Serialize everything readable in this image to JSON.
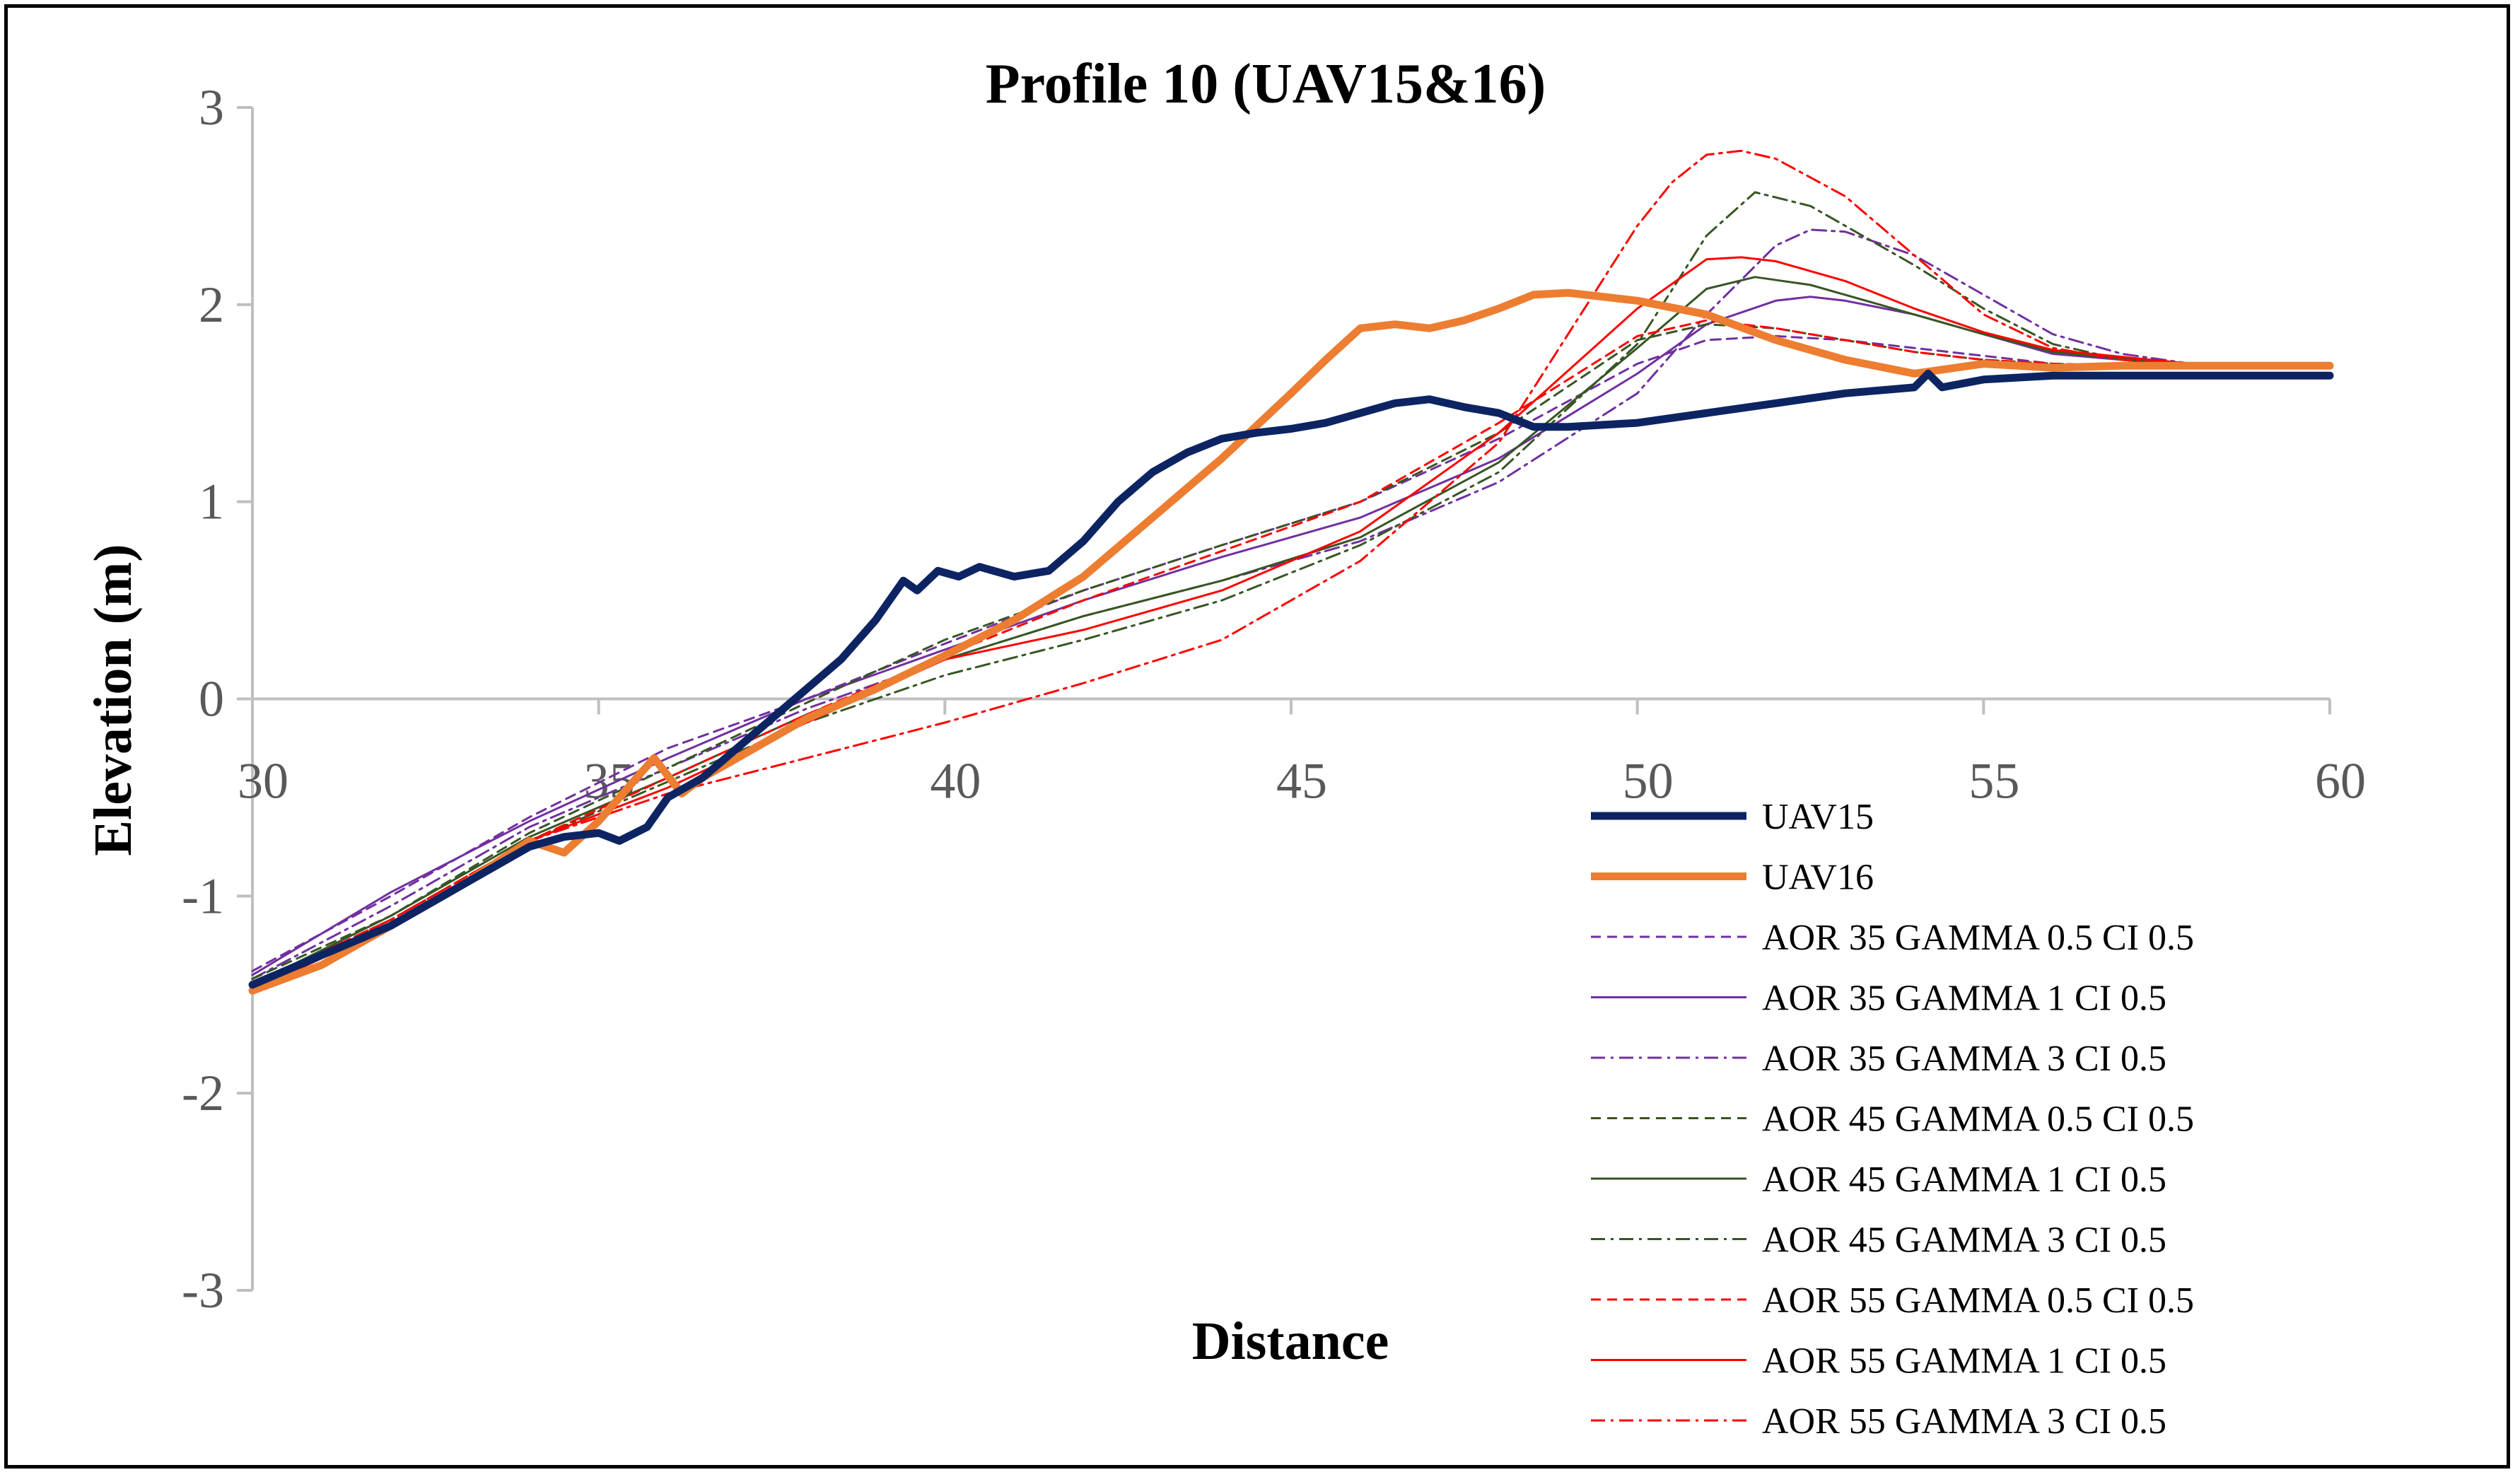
{
  "chart_data": {
    "type": "line",
    "title": "Profile 10 (UAV15&16)",
    "xlabel": "Distance",
    "ylabel": "Elevation (m)",
    "xlim": [
      30,
      60
    ],
    "ylim": [
      -3,
      3
    ],
    "xticks": [
      30,
      35,
      40,
      45,
      50,
      55,
      60
    ],
    "yticks": [
      3,
      2,
      1,
      0,
      -1,
      -2,
      -3
    ],
    "grid": false,
    "legend": "bottom-right",
    "series": [
      {
        "name": "UAV15",
        "color": "#0d2463",
        "width": 11,
        "dash": "",
        "x": [
          30,
          31,
          32,
          33,
          34,
          34.5,
          35,
          35.3,
          35.7,
          36,
          36.5,
          37,
          37.5,
          38,
          38.5,
          39,
          39.4,
          39.6,
          39.9,
          40.2,
          40.5,
          41,
          41.5,
          42,
          42.5,
          43,
          43.5,
          44,
          44.5,
          45,
          45.5,
          46,
          46.5,
          47,
          47.5,
          48,
          48.5,
          49,
          50,
          51,
          52,
          53,
          54,
          54.2,
          54.4,
          55,
          56,
          57,
          58,
          59,
          60
        ],
        "y": [
          -1.45,
          -1.3,
          -1.15,
          -0.95,
          -0.75,
          -0.7,
          -0.68,
          -0.72,
          -0.65,
          -0.5,
          -0.4,
          -0.25,
          -0.1,
          0.05,
          0.2,
          0.4,
          0.6,
          0.55,
          0.65,
          0.62,
          0.67,
          0.62,
          0.65,
          0.8,
          1.0,
          1.15,
          1.25,
          1.32,
          1.35,
          1.37,
          1.4,
          1.45,
          1.5,
          1.52,
          1.48,
          1.45,
          1.38,
          1.38,
          1.4,
          1.45,
          1.5,
          1.55,
          1.58,
          1.65,
          1.58,
          1.62,
          1.64,
          1.64,
          1.64,
          1.64,
          1.64
        ]
      },
      {
        "name": "UAV16",
        "color": "#ed7d31",
        "width": 11,
        "dash": "",
        "x": [
          30,
          31,
          31.5,
          32,
          33,
          34,
          34.5,
          35,
          35.5,
          35.8,
          36.2,
          36.5,
          37,
          38,
          39,
          40,
          41,
          42,
          43,
          44,
          45,
          45.5,
          46,
          46.5,
          47,
          47.5,
          48,
          48.5,
          49,
          50,
          51,
          52,
          53,
          54,
          55,
          56,
          57,
          58,
          59,
          60
        ],
        "y": [
          -1.48,
          -1.35,
          -1.25,
          -1.15,
          -0.95,
          -0.72,
          -0.78,
          -0.62,
          -0.42,
          -0.3,
          -0.48,
          -0.4,
          -0.3,
          -0.1,
          0.05,
          0.22,
          0.4,
          0.62,
          0.92,
          1.22,
          1.55,
          1.72,
          1.88,
          1.9,
          1.88,
          1.92,
          1.98,
          2.05,
          2.06,
          2.02,
          1.95,
          1.82,
          1.72,
          1.65,
          1.7,
          1.68,
          1.69,
          1.69,
          1.69,
          1.69
        ]
      },
      {
        "name": "AOR 35 GAMMA 0.5 CI 0.5",
        "color": "#7030a0",
        "width": 3,
        "dash": "14 9",
        "x": [
          30,
          32,
          34,
          36,
          38,
          40,
          42,
          44,
          46,
          48,
          50,
          51,
          52,
          53,
          54,
          55,
          56,
          58,
          60
        ],
        "y": [
          -1.38,
          -1.0,
          -0.6,
          -0.25,
          0.0,
          0.28,
          0.55,
          0.78,
          1.0,
          1.32,
          1.7,
          1.82,
          1.84,
          1.82,
          1.78,
          1.74,
          1.7,
          1.68,
          1.68
        ]
      },
      {
        "name": "AOR 35 GAMMA 1 CI 0.5",
        "color": "#7030a0",
        "width": 3,
        "dash": "",
        "x": [
          30,
          32,
          34,
          36,
          38,
          40,
          42,
          44,
          46,
          48,
          50,
          51,
          52,
          52.5,
          53,
          54,
          55,
          56,
          58,
          60
        ],
        "y": [
          -1.4,
          -0.98,
          -0.62,
          -0.3,
          0.0,
          0.25,
          0.5,
          0.72,
          0.92,
          1.22,
          1.65,
          1.9,
          2.02,
          2.04,
          2.02,
          1.95,
          1.85,
          1.75,
          1.69,
          1.68
        ]
      },
      {
        "name": "AOR 35 GAMMA 3 CI 0.5",
        "color": "#7030a0",
        "width": 3,
        "dash": "20 8 4 8",
        "x": [
          30,
          32,
          34,
          36,
          38,
          40,
          42,
          44,
          46,
          48,
          50,
          51,
          52,
          52.5,
          53,
          54,
          55,
          56,
          57,
          58,
          60
        ],
        "y": [
          -1.42,
          -1.05,
          -0.65,
          -0.35,
          -0.05,
          0.2,
          0.42,
          0.6,
          0.8,
          1.1,
          1.55,
          1.95,
          2.3,
          2.38,
          2.37,
          2.25,
          2.05,
          1.85,
          1.75,
          1.7,
          1.68
        ]
      },
      {
        "name": "AOR 45 GAMMA 0.5 CI 0.5",
        "color": "#375623",
        "width": 3,
        "dash": "14 9",
        "x": [
          30,
          32,
          34,
          36,
          38,
          40,
          42,
          44,
          46,
          48,
          50,
          51,
          52,
          53,
          54,
          55,
          56,
          58,
          60
        ],
        "y": [
          -1.42,
          -1.1,
          -0.68,
          -0.35,
          -0.02,
          0.3,
          0.55,
          0.78,
          1.0,
          1.35,
          1.82,
          1.9,
          1.88,
          1.82,
          1.76,
          1.72,
          1.7,
          1.68,
          1.68
        ]
      },
      {
        "name": "AOR 45 GAMMA 1 CI 0.5",
        "color": "#375623",
        "width": 3,
        "dash": "",
        "x": [
          30,
          32,
          34,
          36,
          38,
          40,
          42,
          44,
          46,
          48,
          50,
          51,
          51.7,
          52.5,
          53,
          54,
          55,
          56,
          58,
          60
        ],
        "y": [
          -1.45,
          -1.1,
          -0.7,
          -0.4,
          -0.08,
          0.2,
          0.42,
          0.6,
          0.82,
          1.2,
          1.78,
          2.08,
          2.14,
          2.1,
          2.05,
          1.95,
          1.85,
          1.76,
          1.69,
          1.68
        ]
      },
      {
        "name": "AOR 45 GAMMA 3 CI 0.5",
        "color": "#375623",
        "width": 3,
        "dash": "20 8 4 8",
        "x": [
          30,
          32,
          34,
          36,
          38,
          40,
          42,
          44,
          46,
          48,
          50,
          51,
          51.7,
          52.5,
          53,
          54,
          55,
          56,
          57,
          58,
          60
        ],
        "y": [
          -1.45,
          -1.12,
          -0.72,
          -0.42,
          -0.12,
          0.12,
          0.3,
          0.5,
          0.78,
          1.15,
          1.8,
          2.35,
          2.57,
          2.5,
          2.4,
          2.2,
          1.98,
          1.8,
          1.72,
          1.69,
          1.68
        ]
      },
      {
        "name": "AOR 55 GAMMA 0.5 CI 0.5",
        "color": "#ff0000",
        "width": 3,
        "dash": "14 9",
        "x": [
          30,
          32,
          34,
          36,
          38,
          40,
          42,
          44,
          46,
          48,
          50,
          51,
          52,
          53,
          54,
          55,
          56,
          58,
          60
        ],
        "y": [
          -1.45,
          -1.12,
          -0.72,
          -0.4,
          -0.08,
          0.22,
          0.5,
          0.75,
          1.0,
          1.4,
          1.84,
          1.92,
          1.88,
          1.82,
          1.76,
          1.72,
          1.7,
          1.68,
          1.68
        ]
      },
      {
        "name": "AOR 55 GAMMA 1 CI 0.5",
        "color": "#ff0000",
        "width": 3,
        "dash": "",
        "x": [
          30,
          32,
          34,
          36,
          38,
          40,
          42,
          44,
          46,
          48,
          50,
          51,
          51.5,
          52,
          53,
          54,
          55,
          56,
          58,
          60
        ],
        "y": [
          -1.48,
          -1.15,
          -0.72,
          -0.45,
          -0.12,
          0.2,
          0.35,
          0.55,
          0.85,
          1.35,
          1.98,
          2.23,
          2.24,
          2.22,
          2.12,
          1.98,
          1.86,
          1.77,
          1.7,
          1.68
        ]
      },
      {
        "name": "AOR 55 GAMMA 3 CI 0.5",
        "color": "#ff0000",
        "width": 3,
        "dash": "20 8 4 8",
        "x": [
          30,
          32,
          34,
          36,
          38,
          40,
          42,
          44,
          46,
          48,
          49,
          50,
          50.5,
          51,
          51.5,
          52,
          53,
          54,
          55,
          56,
          57,
          58,
          60
        ],
        "y": [
          -1.45,
          -1.12,
          -0.72,
          -0.48,
          -0.3,
          -0.12,
          0.08,
          0.3,
          0.7,
          1.3,
          1.85,
          2.4,
          2.62,
          2.76,
          2.78,
          2.74,
          2.55,
          2.25,
          1.95,
          1.78,
          1.72,
          1.69,
          1.68
        ]
      }
    ]
  }
}
